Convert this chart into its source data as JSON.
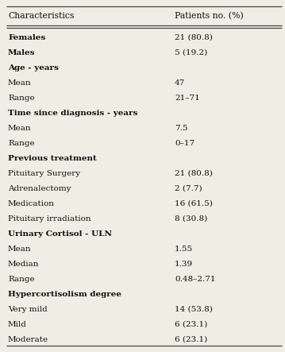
{
  "col1_header": "Characteristics",
  "col2_header": "Patients no. (%)",
  "rows": [
    {
      "label": "Females",
      "value": "21 (80.8)",
      "bold": true
    },
    {
      "label": "Males",
      "value": "5 (19.2)",
      "bold": true
    },
    {
      "label": "Age - years",
      "value": "",
      "bold": true
    },
    {
      "label": "Mean",
      "value": "47",
      "bold": false
    },
    {
      "label": "Range",
      "value": "21–71",
      "bold": false
    },
    {
      "label": "Time since diagnosis - years",
      "value": "",
      "bold": true
    },
    {
      "label": "Mean",
      "value": "7.5",
      "bold": false
    },
    {
      "label": "Range",
      "value": "0–17",
      "bold": false
    },
    {
      "label": "Previous treatment",
      "value": "",
      "bold": true
    },
    {
      "label": "Pituitary Surgery",
      "value": "21 (80.8)",
      "bold": false
    },
    {
      "label": "Adrenalectomy",
      "value": "2 (7.7)",
      "bold": false
    },
    {
      "label": "Medication",
      "value": "16 (61.5)",
      "bold": false
    },
    {
      "label": "Pituitary irradiation",
      "value": "8 (30.8)",
      "bold": false
    },
    {
      "label": "Urinary Cortisol - ULN",
      "value": "",
      "bold": true
    },
    {
      "label": "Mean",
      "value": "1.55",
      "bold": false
    },
    {
      "label": "Median",
      "value": "1.39",
      "bold": false
    },
    {
      "label": "Range",
      "value": "0.48–2.71",
      "bold": false
    },
    {
      "label": "Hypercortisolism degree",
      "value": "",
      "bold": true
    },
    {
      "label": "Very mild",
      "value": "14 (53.8)",
      "bold": false
    },
    {
      "label": "Mild",
      "value": "6 (23.1)",
      "bold": false
    },
    {
      "label": "Moderate",
      "value": "6 (23.1)",
      "bold": false
    }
  ],
  "bg_color": "#f0ede4",
  "line_color": "#444444",
  "text_color": "#111111",
  "header_fontsize": 7.8,
  "row_fontsize": 7.5,
  "figwidth": 3.59,
  "figheight": 4.43,
  "dpi": 100
}
